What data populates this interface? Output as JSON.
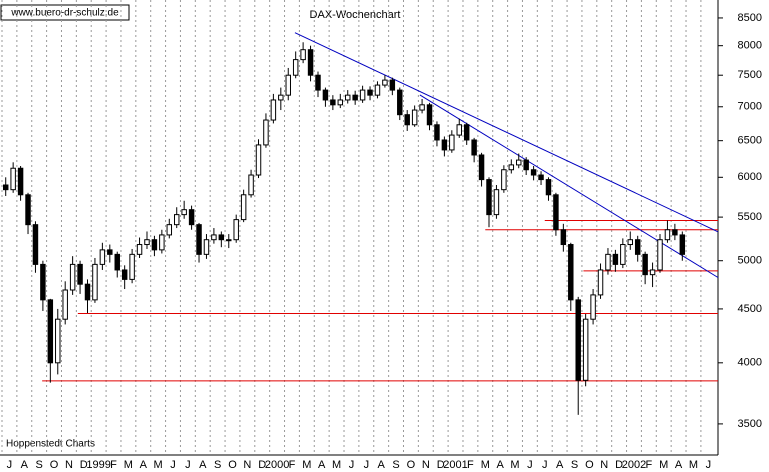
{
  "chart_data": {
    "type": "candlestick",
    "title": "DAX-Wochenchart",
    "annotations": [
      "www.buero-dr-schulz.de",
      "Hoppenstedt Charts"
    ],
    "log_scale": true,
    "grid": true,
    "up_color": "#ffffff",
    "down_color": "#000000",
    "xlim": [
      0,
      48.15
    ],
    "ylim": [
      3270,
      8840
    ],
    "yticks": [
      3500,
      4000,
      4500,
      5000,
      5500,
      6000,
      6500,
      7000,
      7500,
      8000,
      8500
    ],
    "xticks": [
      {
        "value": 0,
        "label": "J"
      },
      {
        "value": 1,
        "label": "A"
      },
      {
        "value": 2,
        "label": "S"
      },
      {
        "value": 3,
        "label": "O"
      },
      {
        "value": 4,
        "label": "N"
      },
      {
        "value": 5,
        "label": "D"
      },
      {
        "value": 6,
        "label": "1999"
      },
      {
        "value": 7,
        "label": "F"
      },
      {
        "value": 8,
        "label": "M"
      },
      {
        "value": 9,
        "label": "A"
      },
      {
        "value": 10,
        "label": "M"
      },
      {
        "value": 11,
        "label": "J"
      },
      {
        "value": 12,
        "label": "J"
      },
      {
        "value": 13,
        "label": "A"
      },
      {
        "value": 14,
        "label": "S"
      },
      {
        "value": 15,
        "label": "O"
      },
      {
        "value": 16,
        "label": "N"
      },
      {
        "value": 17,
        "label": "D"
      },
      {
        "value": 18,
        "label": "2000"
      },
      {
        "value": 19,
        "label": "F"
      },
      {
        "value": 20,
        "label": "M"
      },
      {
        "value": 21,
        "label": "A"
      },
      {
        "value": 22,
        "label": "M"
      },
      {
        "value": 23,
        "label": "J"
      },
      {
        "value": 24,
        "label": "J"
      },
      {
        "value": 25,
        "label": "A"
      },
      {
        "value": 26,
        "label": "S"
      },
      {
        "value": 27,
        "label": "O"
      },
      {
        "value": 28,
        "label": "N"
      },
      {
        "value": 29,
        "label": "D"
      },
      {
        "value": 30,
        "label": "2001"
      },
      {
        "value": 31,
        "label": "F"
      },
      {
        "value": 32,
        "label": "M"
      },
      {
        "value": 33,
        "label": "A"
      },
      {
        "value": 34,
        "label": "M"
      },
      {
        "value": 35,
        "label": "J"
      },
      {
        "value": 36,
        "label": "J"
      },
      {
        "value": 37,
        "label": "A"
      },
      {
        "value": 38,
        "label": "S"
      },
      {
        "value": 39,
        "label": "O"
      },
      {
        "value": 40,
        "label": "N"
      },
      {
        "value": 41,
        "label": "D"
      },
      {
        "value": 42,
        "label": "2002"
      },
      {
        "value": 43,
        "label": "F"
      },
      {
        "value": 44,
        "label": "M"
      },
      {
        "value": 45,
        "label": "A"
      },
      {
        "value": 46,
        "label": "M"
      },
      {
        "value": 47,
        "label": "J"
      }
    ],
    "x": [
      0.25,
      0.75,
      1.25,
      1.75,
      2.25,
      2.75,
      3.25,
      3.75,
      4.25,
      4.75,
      5.25,
      5.75,
      6.25,
      6.75,
      7.25,
      7.75,
      8.25,
      8.75,
      9.25,
      9.75,
      10.25,
      10.75,
      11.25,
      11.75,
      12.25,
      12.75,
      13.25,
      13.75,
      14.25,
      14.75,
      15.25,
      15.75,
      16.25,
      16.75,
      17.25,
      17.75,
      18.25,
      18.75,
      19.25,
      19.75,
      20.25,
      20.75,
      21.25,
      21.75,
      22.25,
      22.75,
      23.25,
      23.75,
      24.25,
      24.75,
      25.25,
      25.75,
      26.25,
      26.75,
      27.25,
      27.75,
      28.25,
      28.75,
      29.25,
      29.75,
      30.25,
      30.75,
      31.25,
      31.75,
      32.25,
      32.75,
      33.25,
      33.75,
      34.25,
      34.75,
      35.25,
      35.75,
      36.25,
      36.75,
      37.25,
      37.75,
      38.25,
      38.75,
      39.25,
      39.75,
      40.25,
      40.75,
      41.25,
      41.75,
      42.25,
      42.75,
      43.25,
      43.75,
      44.25,
      44.75,
      45.25,
      45.75
    ],
    "open": [
      5900,
      5840,
      6120,
      5775,
      5410,
      4960,
      4590,
      4000,
      4400,
      4690,
      4960,
      4750,
      4590,
      4960,
      5120,
      5070,
      4900,
      4800,
      5070,
      5180,
      5235,
      5120,
      5290,
      5410,
      5530,
      5590,
      5410,
      5070,
      5235,
      5290,
      5235,
      5235,
      5470,
      5775,
      6030,
      6440,
      6800,
      7105,
      7180,
      7500,
      7760,
      7930,
      7500,
      7260,
      7105,
      7030,
      7105,
      7180,
      7105,
      7260,
      7180,
      7340,
      7420,
      7260,
      6880,
      6730,
      6950,
      7030,
      6730,
      6510,
      6370,
      6580,
      6730,
      6510,
      6300,
      5970,
      5530,
      5840,
      6100,
      6165,
      6230,
      6100,
      6030,
      5970,
      5775,
      5350,
      5180,
      4590,
      3850,
      4400,
      4640,
      4900,
      5070,
      4960,
      5180,
      5235,
      5070,
      4850,
      4900,
      5235,
      5350,
      5290
    ],
    "high": [
      6000,
      6200,
      6150,
      5800,
      5450,
      5000,
      4600,
      4500,
      4780,
      5050,
      5000,
      4800,
      5030,
      5200,
      5180,
      5100,
      4950,
      5130,
      5260,
      5330,
      5280,
      5350,
      5480,
      5620,
      5700,
      5640,
      5430,
      5300,
      5370,
      5330,
      5300,
      5530,
      5840,
      6100,
      6520,
      6900,
      7200,
      7300,
      7620,
      7900,
      8060,
      8000,
      7560,
      7300,
      7180,
      7200,
      7260,
      7250,
      7330,
      7320,
      7400,
      7500,
      7460,
      7300,
      6950,
      7020,
      7120,
      7060,
      6780,
      6560,
      6650,
      6820,
      6760,
      6540,
      6330,
      6000,
      5900,
      6160,
      6240,
      6320,
      6270,
      6150,
      6080,
      6000,
      5800,
      5420,
      5200,
      4620,
      4450,
      4700,
      4970,
      5140,
      5120,
      5250,
      5330,
      5280,
      5100,
      4980,
      5300,
      5460,
      5420,
      5330
    ],
    "low": [
      5760,
      5800,
      5700,
      5300,
      4870,
      4480,
      3830,
      3900,
      4350,
      4640,
      4650,
      4460,
      4560,
      4900,
      4980,
      4820,
      4700,
      4760,
      5030,
      5130,
      5050,
      5080,
      5250,
      5370,
      5480,
      5350,
      4980,
      5020,
      5190,
      5150,
      5140,
      5200,
      5440,
      5740,
      5990,
      6400,
      6750,
      6950,
      7100,
      7450,
      7700,
      7400,
      7150,
      7000,
      6950,
      6980,
      7050,
      7030,
      7060,
      7100,
      7130,
      7300,
      7180,
      6800,
      6640,
      6700,
      6900,
      6650,
      6420,
      6280,
      6330,
      6540,
      6440,
      6200,
      5880,
      5380,
      5480,
      5800,
      6050,
      6120,
      6030,
      5960,
      5900,
      5700,
      5280,
      5100,
      4480,
      3570,
      3800,
      4350,
      4600,
      4850,
      4880,
      4920,
      5120,
      4990,
      4750,
      4720,
      4870,
      5200,
      5230,
      5000
    ],
    "close": [
      5840,
      6120,
      5775,
      5410,
      4960,
      4590,
      4000,
      4400,
      4690,
      4960,
      4750,
      4590,
      4960,
      5120,
      5070,
      4900,
      4800,
      5070,
      5180,
      5235,
      5120,
      5290,
      5410,
      5530,
      5590,
      5410,
      5070,
      5235,
      5290,
      5235,
      5235,
      5470,
      5775,
      6030,
      6440,
      6800,
      7105,
      7180,
      7500,
      7760,
      7930,
      7500,
      7260,
      7105,
      7030,
      7105,
      7180,
      7105,
      7260,
      7180,
      7340,
      7420,
      7260,
      6880,
      6730,
      6950,
      7030,
      6730,
      6510,
      6370,
      6580,
      6730,
      6510,
      6300,
      5970,
      5530,
      5840,
      6100,
      6165,
      6230,
      6100,
      6030,
      5970,
      5775,
      5350,
      5180,
      4590,
      3850,
      4400,
      4640,
      4900,
      5070,
      4960,
      5180,
      5235,
      5070,
      4850,
      4900,
      5235,
      5350,
      5290,
      5070
    ],
    "reference_lines": [
      {
        "value": 5460,
        "x": [
          36.5,
          48.15
        ],
        "color": "#e00000"
      },
      {
        "value": 5350,
        "x": [
          32.5,
          48.15
        ],
        "color": "#e00000"
      },
      {
        "value": 4890,
        "x": [
          39.1,
          48.15
        ],
        "color": "#e00000"
      },
      {
        "value": 4455,
        "x": [
          5.1,
          48.15
        ],
        "color": "#e00000"
      },
      {
        "value": 3845,
        "x": [
          2.7,
          48.15
        ],
        "color": "#e00000"
      }
    ],
    "trend_lines": [
      {
        "x": [
          19.7,
          48.15
        ],
        "y": [
          8230,
          5326
        ],
        "color": "#0000c0"
      },
      {
        "x": [
          28.1,
          48.15
        ],
        "y": [
          7183,
          4820
        ],
        "color": "#0000c0"
      }
    ]
  }
}
